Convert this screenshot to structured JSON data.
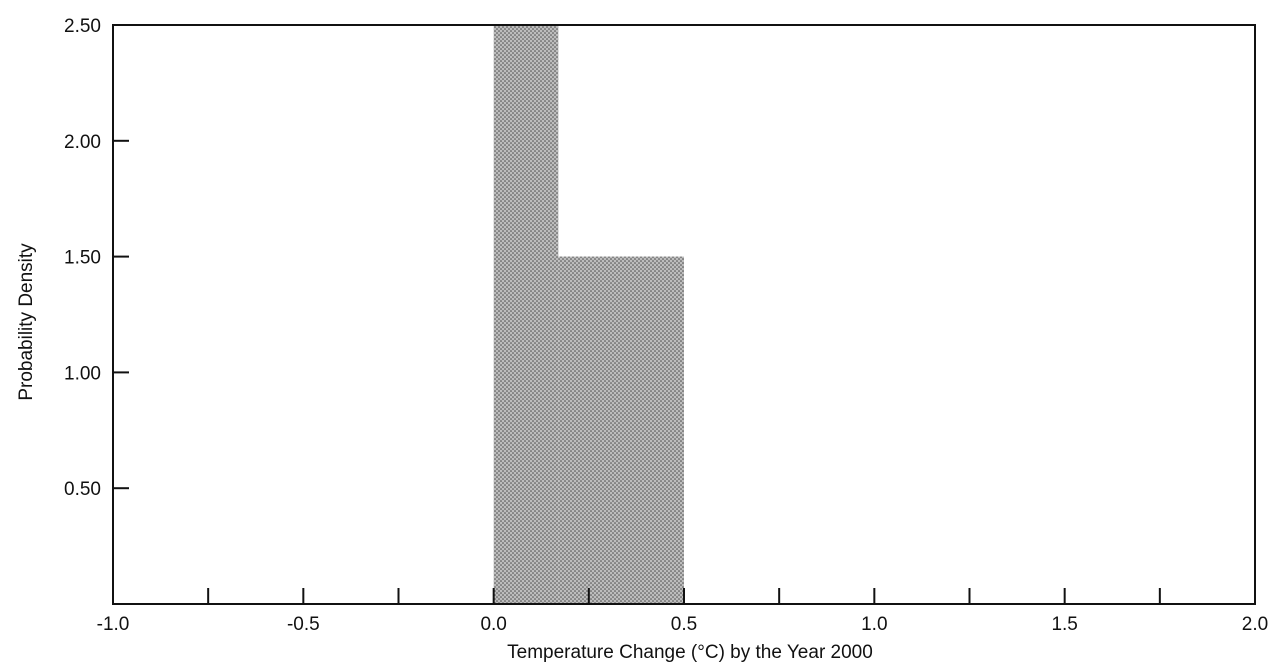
{
  "chart_data": {
    "type": "bar",
    "title": "",
    "xlabel": "Temperature Change (°C) by the Year 2000",
    "ylabel": "Probability Density",
    "xlim": [
      -1.0,
      2.0
    ],
    "ylim": [
      0,
      2.5
    ],
    "xticks": [
      -1.0,
      -0.75,
      -0.5,
      -0.25,
      0.0,
      0.25,
      0.5,
      0.75,
      1.0,
      1.25,
      1.5,
      1.75,
      2.0
    ],
    "xtick_labels": [
      {
        "value": -1.0,
        "label": "-1.0"
      },
      {
        "value": -0.5,
        "label": "-0.5"
      },
      {
        "value": 0.0,
        "label": "0.0"
      },
      {
        "value": 0.5,
        "label": "0.5"
      },
      {
        "value": 1.0,
        "label": "1.0"
      },
      {
        "value": 1.5,
        "label": "1.5"
      },
      {
        "value": 2.0,
        "label": "2.0"
      }
    ],
    "yticks": [
      0.5,
      1.0,
      1.5,
      2.0,
      2.5
    ],
    "ytick_labels": [
      "0.50",
      "1.00",
      "1.50",
      "2.00",
      "2.50"
    ],
    "bins": [
      {
        "x0": 0.0,
        "x1": 0.17,
        "density": 2.5
      },
      {
        "x0": 0.17,
        "x1": 0.5,
        "density": 1.5
      }
    ],
    "grid": false,
    "legend": "none",
    "colors": {
      "axis": "#111111",
      "bar_fill": "#bdbdbd",
      "bar_dot": "#4a4a4a"
    }
  }
}
